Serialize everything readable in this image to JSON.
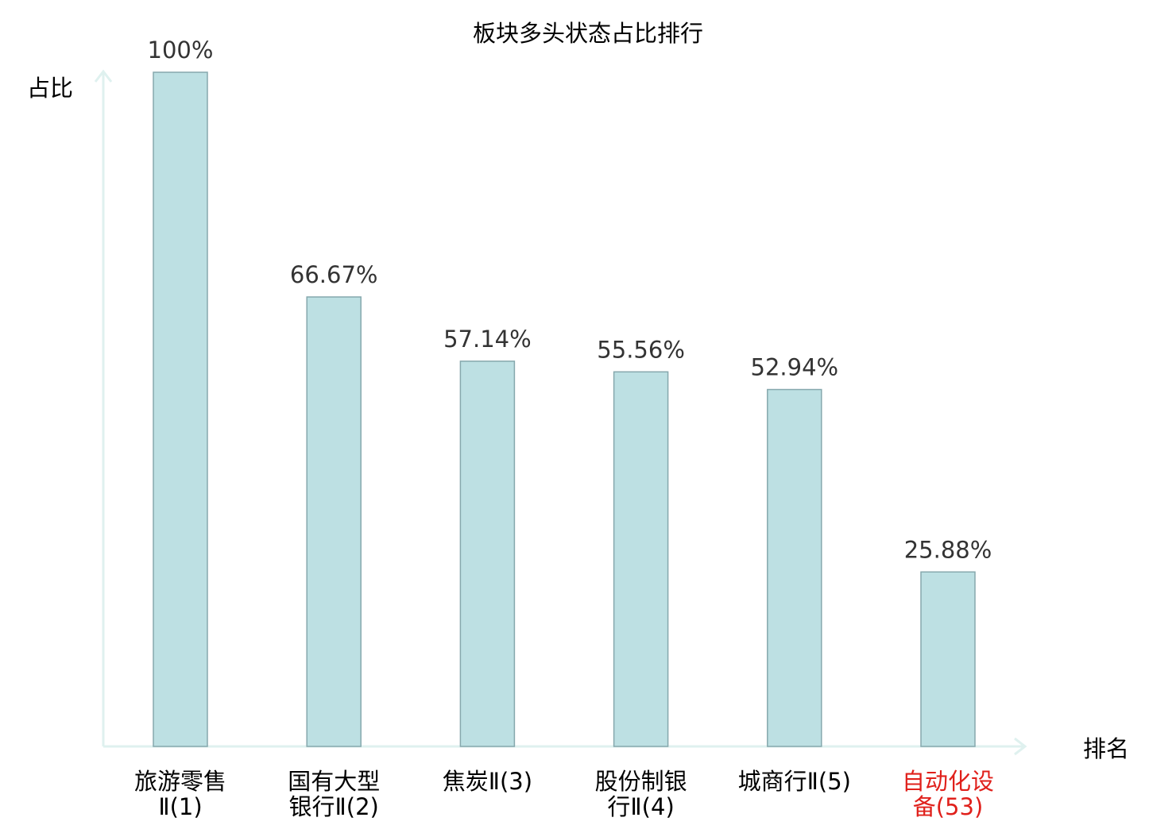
{
  "chart_data": {
    "type": "bar",
    "title": "板块多头状态占比排行",
    "xlabel": "排名",
    "ylabel": "占比",
    "ylim": [
      0,
      100
    ],
    "grid": false,
    "legend": "none",
    "categories": [
      [
        "旅游零售",
        "Ⅱ(1)"
      ],
      [
        "国有大型",
        "银行Ⅱ(2)"
      ],
      [
        "焦炭Ⅱ(3)"
      ],
      [
        "股份制银",
        "行Ⅱ(4)"
      ],
      [
        "城商行Ⅱ(5)"
      ],
      [
        "自动化设",
        "备(53)"
      ]
    ],
    "values": [
      100,
      66.67,
      57.14,
      55.56,
      52.94,
      25.88
    ],
    "data_labels": [
      "100%",
      "66.67%",
      "57.14%",
      "55.56%",
      "52.94%",
      "25.88%"
    ],
    "highlight_index": 5,
    "colors": {
      "bar_fill": "#bde0e3",
      "bar_stroke": "#86a8ad",
      "axis": "#dff1ef",
      "text": "#333333",
      "highlight_text": "#e0201b"
    }
  }
}
